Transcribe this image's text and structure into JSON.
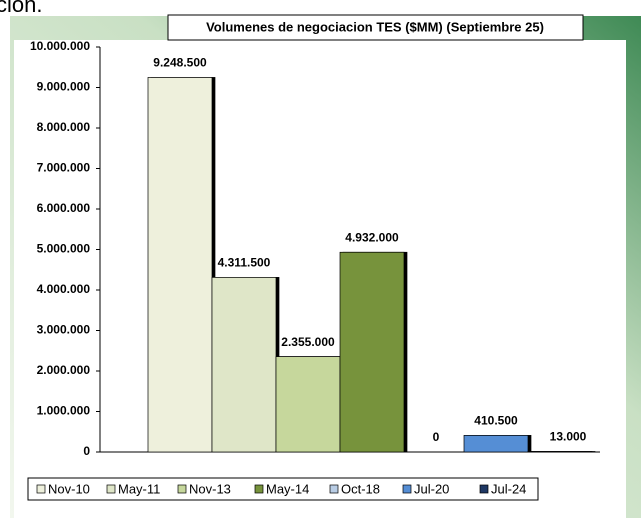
{
  "caption_fragment": "ción.",
  "chart_data": {
    "type": "bar",
    "title": "Volumenes de negociacion TES ($MM) (Septiembre 25)",
    "categories": [
      "Nov-10",
      "May-11",
      "Nov-13",
      "May-14",
      "Oct-18",
      "Jul-20",
      "Jul-24"
    ],
    "values": [
      9248500,
      4311500,
      2355000,
      4932000,
      0,
      410500,
      13000
    ],
    "value_labels": [
      "9.248.500",
      "4.311.500",
      "2.355.000",
      "4.932.000",
      "0",
      "410.500",
      "13.000"
    ],
    "colors": [
      "#eef0dc",
      "#dfe6c8",
      "#c6d79c",
      "#77933c",
      "#b9cde5",
      "#558ed5",
      "#1f3864"
    ],
    "ylim": [
      0,
      10000000
    ],
    "yticks": [
      0,
      {
        "value": 1000000,
        "label": "1.000.000"
      },
      {
        "value": 2000000,
        "label": "2.000.000"
      },
      {
        "value": 3000000,
        "label": "3.000.000"
      },
      {
        "value": 4000000,
        "label": "4.000.000"
      },
      {
        "value": 5000000,
        "label": "5.000.000"
      },
      {
        "value": 6000000,
        "label": "6.000.000"
      },
      {
        "value": 7000000,
        "label": "7.000.000"
      },
      {
        "value": 8000000,
        "label": "8.000.000"
      },
      {
        "value": 9000000,
        "label": "9.000.000"
      },
      {
        "value": 10000000,
        "label": "10.000.000"
      }
    ],
    "grid": false,
    "legend": "bottom"
  }
}
